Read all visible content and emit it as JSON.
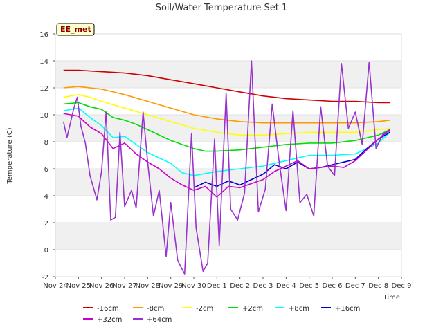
{
  "chart_data": {
    "type": "line",
    "title": "Soil/Water Temperature Set 1",
    "xlabel": "Time",
    "ylabel": "Temperature (C)",
    "station_badge": "EE_met",
    "ylim": [
      -2,
      16
    ],
    "xlim": [
      0,
      15
    ],
    "yticks": [
      "-2",
      "0",
      "2",
      "4",
      "6",
      "8",
      "10",
      "12",
      "14",
      "16"
    ],
    "xticks": [
      "Nov 24",
      "Nov 25",
      "Nov 26",
      "Nov 27",
      "Nov 28",
      "Nov 29",
      "Nov 30",
      "Dec 1",
      "Dec 2",
      "Dec 3",
      "Dec 4",
      "Dec 5",
      "Dec 6",
      "Dec 7",
      "Dec 8",
      "Dec 9"
    ],
    "x_unit": "days since Nov 24",
    "grid": "horizontal shaded bands",
    "legend_position": "bottom",
    "series": [
      {
        "name": "-16cm",
        "color": "#cc0000",
        "x": [
          0.35,
          1,
          2,
          3,
          4,
          5,
          6,
          7,
          8,
          9,
          10,
          11,
          12,
          13,
          14,
          14.5
        ],
        "y": [
          13.3,
          13.3,
          13.2,
          13.1,
          12.9,
          12.6,
          12.3,
          12.0,
          11.7,
          11.4,
          11.2,
          11.1,
          11.0,
          11.0,
          10.9,
          10.9
        ]
      },
      {
        "name": "-8cm",
        "color": "#ff9900",
        "x": [
          0.35,
          1,
          2,
          3,
          4,
          5,
          6,
          7,
          8,
          9,
          10,
          11,
          12,
          13,
          14,
          14.5
        ],
        "y": [
          12.0,
          12.1,
          11.9,
          11.5,
          11.0,
          10.5,
          10.0,
          9.7,
          9.5,
          9.4,
          9.4,
          9.4,
          9.4,
          9.4,
          9.5,
          9.6
        ]
      },
      {
        "name": "-2cm",
        "color": "#ffff00",
        "x": [
          0.35,
          1,
          1.5,
          2,
          3,
          4,
          5,
          6,
          7,
          8,
          9,
          10,
          11,
          12,
          13,
          14,
          14.5
        ],
        "y": [
          11.3,
          11.5,
          11.3,
          11.0,
          10.5,
          10.0,
          9.5,
          9.0,
          8.7,
          8.5,
          8.5,
          8.6,
          8.7,
          8.7,
          8.7,
          8.9,
          9.0
        ]
      },
      {
        "name": "+2cm",
        "color": "#00dd00",
        "x": [
          0.35,
          1,
          1.5,
          2,
          2.5,
          3,
          3.5,
          4,
          5,
          6,
          6.5,
          7,
          8,
          9,
          10,
          11,
          12,
          13,
          14,
          14.5
        ],
        "y": [
          10.8,
          10.9,
          10.6,
          10.4,
          9.8,
          9.6,
          9.3,
          8.9,
          8.1,
          7.5,
          7.3,
          7.3,
          7.4,
          7.6,
          7.8,
          7.9,
          7.9,
          8.1,
          8.5,
          8.9
        ]
      },
      {
        "name": "+8cm",
        "color": "#00ffff",
        "x": [
          0.35,
          1,
          1.5,
          2,
          2.5,
          3,
          3.5,
          4,
          4.5,
          5,
          5.5,
          6,
          7,
          8,
          9,
          10,
          11,
          12,
          13,
          14,
          14.5
        ],
        "y": [
          10.3,
          10.5,
          9.8,
          9.2,
          8.3,
          8.4,
          7.8,
          7.2,
          6.8,
          6.4,
          5.7,
          5.5,
          5.8,
          6.0,
          6.2,
          6.6,
          7.0,
          7.0,
          7.1,
          7.9,
          8.7
        ]
      },
      {
        "name": "+16cm",
        "color": "#0000cc",
        "x": [
          6.0,
          6.5,
          7.0,
          7.5,
          8.0,
          8.5,
          9.0,
          9.5,
          10.0,
          10.5,
          11.0,
          11.5,
          12.0,
          12.5,
          13.0,
          13.5,
          14.0,
          14.5
        ],
        "y": [
          4.6,
          5.0,
          4.7,
          5.1,
          4.8,
          5.2,
          5.6,
          6.3,
          6.0,
          6.5,
          6.0,
          6.1,
          6.3,
          6.5,
          6.7,
          7.5,
          8.2,
          8.7
        ]
      },
      {
        "name": "+32cm",
        "color": "#cc00cc",
        "x": [
          0.35,
          1,
          1.5,
          2,
          2.5,
          3,
          3.5,
          4,
          4.5,
          5,
          5.5,
          6,
          6.5,
          7,
          7.5,
          8,
          8.5,
          9,
          9.5,
          10,
          10.5,
          11,
          11.5,
          12,
          12.5,
          13,
          13.5,
          14,
          14.5
        ],
        "y": [
          10.1,
          9.9,
          9.1,
          8.6,
          7.5,
          7.9,
          7.1,
          6.5,
          6.0,
          5.3,
          4.8,
          4.4,
          4.7,
          3.9,
          4.7,
          4.6,
          4.9,
          5.2,
          5.8,
          6.2,
          6.6,
          6.0,
          6.1,
          6.2,
          6.1,
          6.6,
          7.4,
          8.2,
          8.9
        ]
      },
      {
        "name": "+64cm",
        "color": "#9932cc",
        "x": [
          0.35,
          0.5,
          0.8,
          0.95,
          1.1,
          1.3,
          1.5,
          1.8,
          2.0,
          2.2,
          2.4,
          2.6,
          2.8,
          3.0,
          3.3,
          3.5,
          3.8,
          4.0,
          4.25,
          4.5,
          4.8,
          5.0,
          5.3,
          5.6,
          5.9,
          6.1,
          6.4,
          6.6,
          6.9,
          7.1,
          7.4,
          7.6,
          7.9,
          8.2,
          8.5,
          8.8,
          9.1,
          9.4,
          9.7,
          10.0,
          10.3,
          10.6,
          10.9,
          11.2,
          11.5,
          11.8,
          12.1,
          12.4,
          12.7,
          13.0,
          13.3,
          13.6,
          13.9,
          14.2,
          14.5
        ],
        "y": [
          9.5,
          8.3,
          10.5,
          11.3,
          9.2,
          7.9,
          5.5,
          3.7,
          5.8,
          10.2,
          2.2,
          2.4,
          8.7,
          3.2,
          4.4,
          3.1,
          10.2,
          6.5,
          2.5,
          4.4,
          -0.5,
          3.5,
          -0.8,
          -1.8,
          8.6,
          1.6,
          -1.6,
          -1.0,
          8.2,
          0.3,
          11.6,
          3.0,
          2.2,
          4.2,
          14.0,
          2.8,
          4.5,
          10.8,
          6.5,
          2.9,
          10.3,
          3.5,
          4.1,
          2.5,
          10.6,
          6.2,
          5.5,
          13.8,
          9.0,
          10.2,
          7.8,
          13.9,
          7.5,
          8.6,
          8.8
        ]
      }
    ]
  }
}
